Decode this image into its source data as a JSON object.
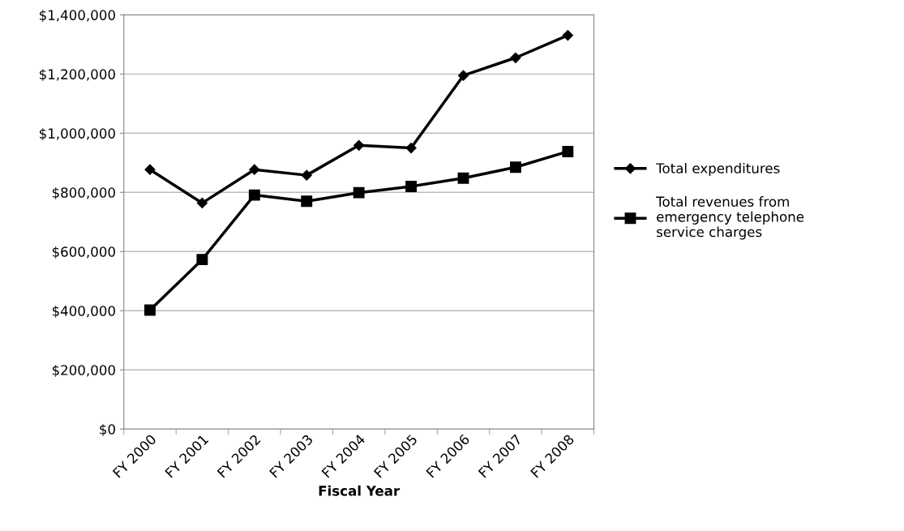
{
  "chart_data": {
    "type": "line",
    "xlabel": "Fiscal Year",
    "categories": [
      "FY 2000",
      "FY 2001",
      "FY 2002",
      "FY 2003",
      "FY 2004",
      "FY 2005",
      "FY 2006",
      "FY 2007",
      "FY 2008"
    ],
    "series": [
      {
        "name": "Total expenditures",
        "color": "#000000",
        "marker": "diamond",
        "values": [
          877000,
          764000,
          877000,
          858000,
          959000,
          950000,
          1195000,
          1255000,
          1331000
        ]
      },
      {
        "name": "Total revenues from emergency telephone service charges",
        "color": "#000000",
        "marker": "square",
        "values": [
          402000,
          573000,
          791000,
          770000,
          799000,
          820000,
          848000,
          885000,
          938000
        ]
      }
    ],
    "ylim": [
      0,
      1400000
    ],
    "yticks": [
      {
        "value": 0,
        "label": "$0"
      },
      {
        "value": 200000,
        "label": "$200,000"
      },
      {
        "value": 400000,
        "label": "$400,000"
      },
      {
        "value": 600000,
        "label": "$600,000"
      },
      {
        "value": 800000,
        "label": "$800,000"
      },
      {
        "value": 1000000,
        "label": "$1,000,000"
      },
      {
        "value": 1200000,
        "label": "$1,200,000"
      },
      {
        "value": 1400000,
        "label": "$1,400,000"
      }
    ],
    "grid": "y",
    "legend": "right",
    "line_style": "solid"
  }
}
